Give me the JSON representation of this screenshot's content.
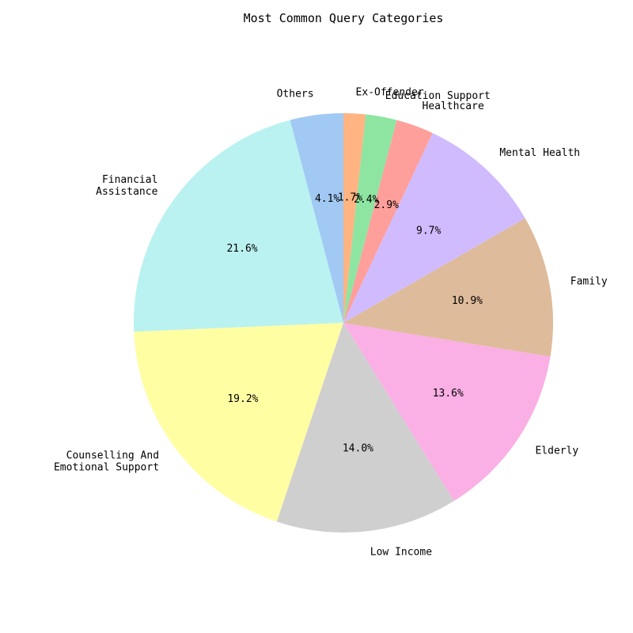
{
  "chart_data": {
    "type": "pie",
    "title": "Most Common Query Categories",
    "start_angle_deg": 90,
    "direction": "counterclockwise",
    "slices": [
      {
        "label": "Others",
        "value": 4.1,
        "pct_label": "4.1%",
        "color": "#a1c9f4"
      },
      {
        "label": "Financial\nAssistance",
        "value": 21.6,
        "pct_label": "21.6%",
        "color": "#b9f2f0"
      },
      {
        "label": "Counselling And\nEmotional Support",
        "value": 19.2,
        "pct_label": "19.2%",
        "color": "#fffea3"
      },
      {
        "label": "Low Income",
        "value": 14.0,
        "pct_label": "14.0%",
        "color": "#cfcfcf"
      },
      {
        "label": "Elderly",
        "value": 13.6,
        "pct_label": "13.6%",
        "color": "#fab0e4"
      },
      {
        "label": "Family",
        "value": 10.9,
        "pct_label": "10.9%",
        "color": "#debb9b"
      },
      {
        "label": "Mental Health",
        "value": 9.7,
        "pct_label": "9.7%",
        "color": "#d0bbff"
      },
      {
        "label": "Healthcare",
        "value": 2.9,
        "pct_label": "2.9%",
        "color": "#ff9f9b"
      },
      {
        "label": "Education Support",
        "value": 2.4,
        "pct_label": "2.4%",
        "color": "#8de5a1"
      },
      {
        "label": "Ex-Offender",
        "value": 1.7,
        "pct_label": "1.7%",
        "color": "#ffb482"
      }
    ]
  }
}
